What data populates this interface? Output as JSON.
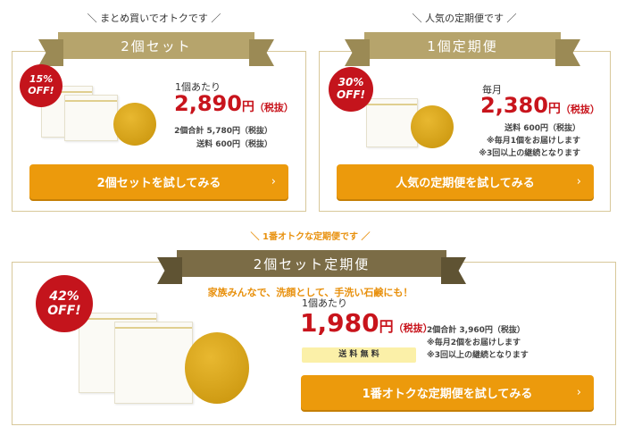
{
  "plans": [
    {
      "tagline": "＼ まとめ買いでオトクです ／",
      "title": "2個セット",
      "discount": "15%",
      "off": "OFF!",
      "price_label": "1個あたり",
      "price": "2,890",
      "yen": "円",
      "tax": "（税抜）",
      "lines": [
        "2個合計 5,780円（税抜）",
        "送料 600円（税抜）"
      ],
      "button": "2個セットを試してみる",
      "chevron": "›"
    },
    {
      "tagline": "＼ 人気の定期便です ／",
      "title": "1個定期便",
      "discount": "30%",
      "off": "OFF!",
      "price_label": "毎月",
      "price": "2,380",
      "yen": "円",
      "tax": "（税抜）",
      "lines": [
        "送料 600円（税抜）",
        "※毎月1個をお届けします",
        "※3回以上の継続となります"
      ],
      "button": "人気の定期便を試してみる",
      "chevron": "›"
    },
    {
      "tagline": "＼ 1番オトクな定期便です ／",
      "title": "2個セット定期便",
      "subtitle": "家族みんなで、洗顔として、手洗い石鹸にも！",
      "discount": "42%",
      "off": "OFF!",
      "price_label": "1個あたり",
      "price": "1,980",
      "yen": "円",
      "tax": "（税抜）",
      "shipping": "送 料 無 料",
      "lines": [
        "2個合計 3,960円（税抜）",
        "※毎月2個をお届けします",
        "※3回以上の継続となります"
      ],
      "button": "1番オトクな定期便を試してみる",
      "chevron": "›"
    }
  ],
  "colors": {
    "ribbon_gold": "#b6a46c",
    "ribbon_olive": "#7b6c46",
    "badge": "#c4141c",
    "price": "#c8141c",
    "button": "#ec9a0c",
    "subtitle": "#e8900c"
  }
}
